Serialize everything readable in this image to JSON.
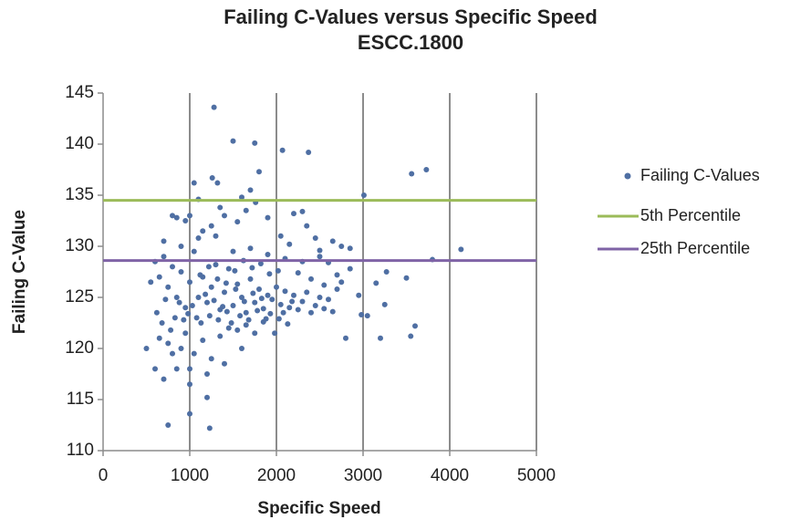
{
  "chart_data": {
    "type": "scatter",
    "title": "Failing C-Values versus Specific Speed",
    "subtitle": "ESCC.1800",
    "x_label": "Specific Speed",
    "y_label": "Failing C-Value",
    "xlim": [
      0,
      5000
    ],
    "xticks": [
      0,
      1000,
      2000,
      3000,
      4000,
      5000
    ],
    "ylim": [
      110,
      145
    ],
    "yticks": [
      110,
      115,
      120,
      125,
      130,
      135,
      140,
      145
    ],
    "grid": "x",
    "legend": "right",
    "series": [
      {
        "name": "Failing C-Values",
        "color": "#4f6fa3",
        "x": [
          1280,
          1500,
          1750,
          2070,
          2370,
          3560,
          3730,
          3010,
          4130,
          3800,
          750,
          1000,
          1230,
          1200,
          3600,
          3550,
          3200,
          2800,
          2980,
          3050,
          3150,
          3270,
          3500,
          3250,
          500,
          600,
          700,
          800,
          900,
          1000,
          1050,
          1260,
          1320,
          1700,
          1760,
          1800,
          1100,
          1350,
          1600,
          1650,
          800,
          850,
          950,
          1000,
          1150,
          1250,
          1400,
          1550,
          1900,
          2200,
          2300,
          2350,
          2450,
          2650,
          2750,
          2850,
          2500,
          2600,
          2150,
          2050,
          600,
          650,
          700,
          750,
          800,
          850,
          900,
          950,
          1000,
          1050,
          1100,
          1150,
          1200,
          1250,
          1300,
          1350,
          1400,
          1450,
          1500,
          1550,
          1600,
          1650,
          1700,
          1750,
          1800,
          1850,
          1900,
          1950,
          2000,
          2050,
          2100,
          2150,
          2200,
          2250,
          2300,
          2350,
          2400,
          2450,
          2500,
          2550,
          2600,
          2650,
          2700,
          2750,
          620,
          680,
          720,
          780,
          830,
          880,
          930,
          980,
          1030,
          1080,
          1130,
          1180,
          1230,
          1280,
          1330,
          1380,
          1430,
          1480,
          1530,
          1580,
          1630,
          1680,
          1730,
          1780,
          1830,
          1880,
          1930,
          1980,
          2030,
          2080,
          2130,
          2180,
          550,
          650,
          750,
          850,
          950,
          1050,
          1150,
          1250,
          1350,
          1450,
          1550,
          1650,
          1750,
          1850,
          700,
          900,
          1100,
          1300,
          1500,
          1700,
          1900,
          2100,
          2300,
          2500,
          1120,
          1220,
          1320,
          1420,
          1520,
          1620,
          1720,
          1820,
          1920,
          2020,
          2250,
          2400,
          2550,
          2700,
          2850,
          2950,
          1000,
          1200,
          1400,
          1600
        ],
        "values": [
          143.6,
          140.3,
          140.1,
          139.4,
          139.2,
          137.1,
          137.5,
          135,
          129.7,
          128.7,
          112.5,
          113.6,
          112.2,
          115.2,
          122.2,
          121.2,
          121,
          121,
          123.3,
          123.2,
          126.4,
          127.5,
          126.9,
          124.3,
          120,
          118,
          117,
          119.5,
          120,
          118,
          136.2,
          136.7,
          136.2,
          135.5,
          134.3,
          137.3,
          134.6,
          133.8,
          134.8,
          133.5,
          133,
          132.8,
          132.5,
          133,
          131.5,
          132,
          133,
          132.4,
          132.8,
          133.2,
          133.4,
          132,
          130.8,
          130.5,
          130,
          129.8,
          129.6,
          128.4,
          130.2,
          131,
          128.5,
          127,
          129,
          126,
          128,
          125,
          127.5,
          124,
          126.5,
          129.5,
          125,
          127,
          124.5,
          126,
          128.2,
          123.8,
          125.5,
          127.8,
          124.2,
          126.3,
          125,
          123.5,
          126.8,
          124.5,
          125.8,
          123.9,
          125.2,
          124.8,
          126,
          124.3,
          125.6,
          124,
          125.2,
          123.8,
          124.6,
          125.5,
          123.5,
          124.2,
          125,
          123.9,
          124.8,
          123.6,
          127.2,
          126.5,
          123.5,
          122.5,
          124.8,
          121.8,
          123,
          124.5,
          122.8,
          123.4,
          124.2,
          123,
          122.5,
          125.3,
          123.2,
          124.7,
          122.8,
          124.1,
          123.6,
          122.5,
          125.8,
          123.2,
          124.6,
          122.8,
          125.4,
          123.7,
          124.9,
          122.9,
          123.4,
          121.5,
          122.9,
          123.5,
          122.4,
          124.6,
          126.5,
          121,
          120.5,
          118,
          121.5,
          119.5,
          120.8,
          119,
          121.2,
          122,
          121.8,
          122.3,
          121.5,
          122.6,
          130.5,
          130,
          130.8,
          131,
          129.5,
          129.8,
          129.2,
          128.8,
          128.5,
          129,
          127.2,
          128,
          126.8,
          126.4,
          127.6,
          128.6,
          127.9,
          128.3,
          127.3,
          127.6,
          127.4,
          126.8,
          126.2,
          125.8,
          127.8,
          125.2,
          116.5,
          117.5,
          118.5,
          120
        ]
      }
    ],
    "reference_lines": [
      {
        "name": "5th Percentile",
        "color": "#9bbb59",
        "value": 134.5
      },
      {
        "name": "25th Percentile",
        "color": "#7f63a6",
        "value": 128.6
      }
    ]
  }
}
